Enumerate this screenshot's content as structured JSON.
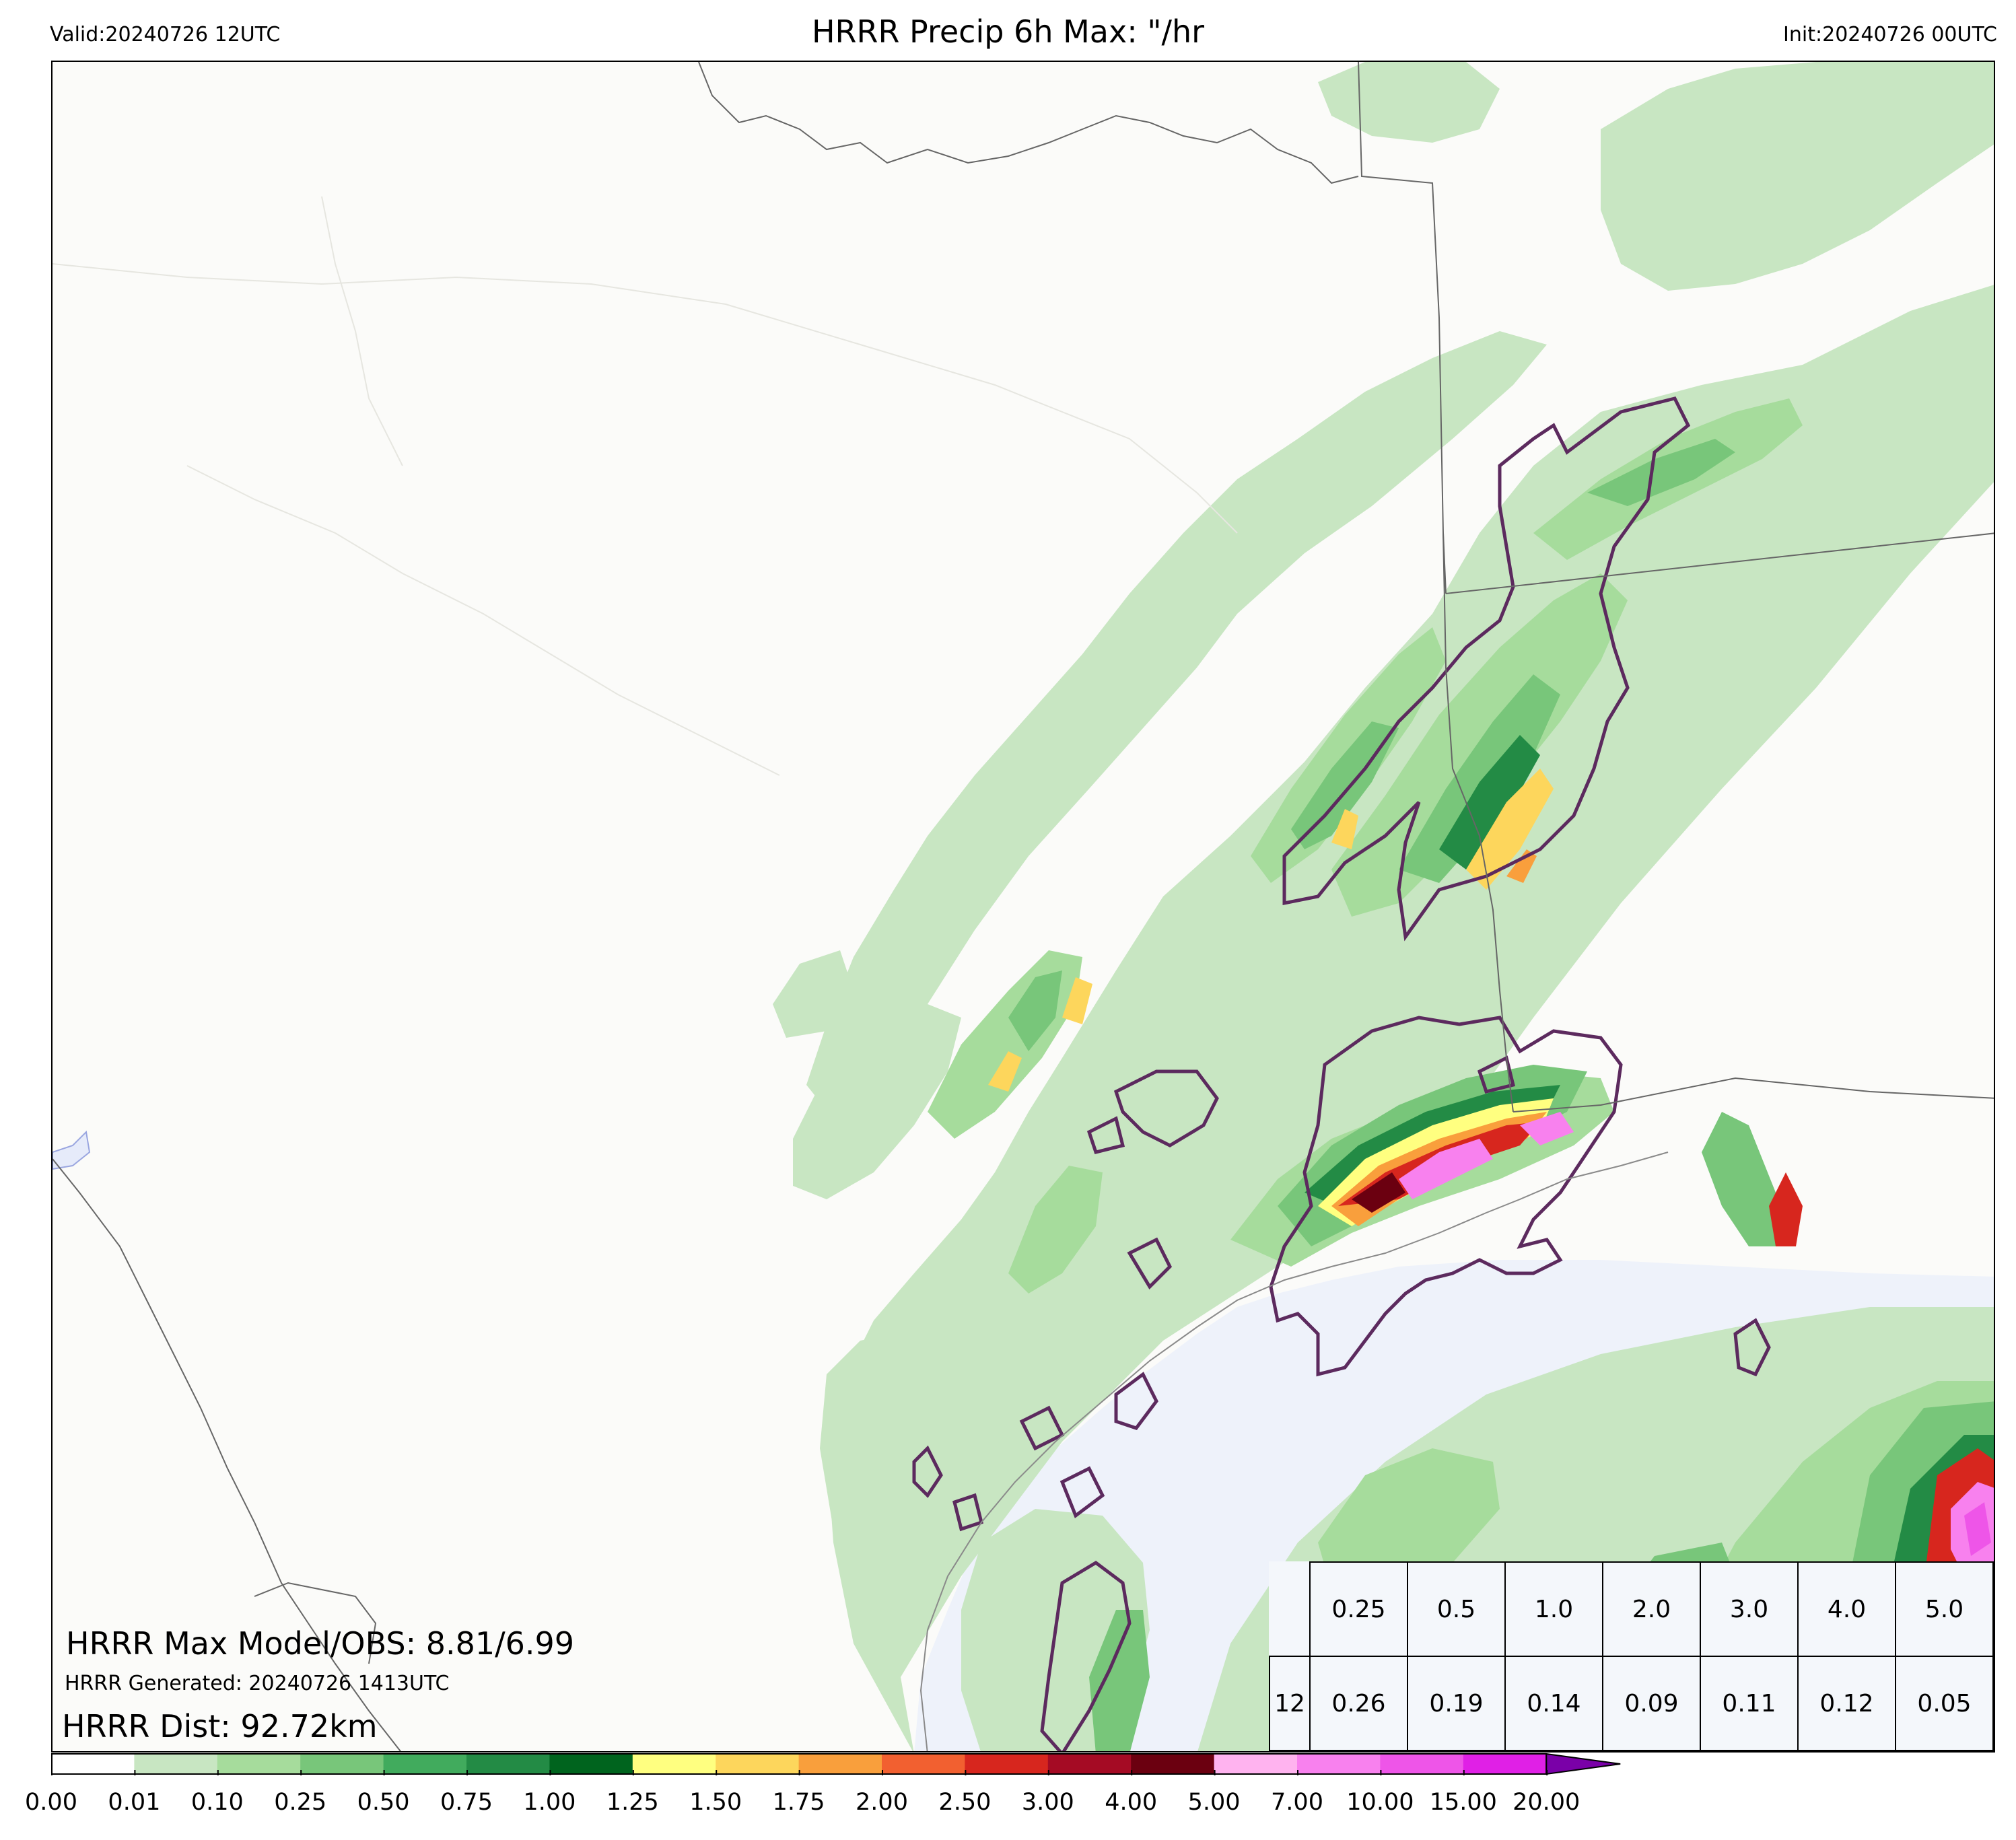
{
  "header": {
    "valid": "Valid:20240726 12UTC",
    "title": "HRRR Precip 6h Max: \"/hr",
    "init": "Init:20240726 00UTC"
  },
  "stats": {
    "max_model_obs": "HRRR Max Model/OBS: 8.81/6.99",
    "generated": "HRRR Generated: 20240726 1413UTC",
    "distance": "HRRR Dist: 92.72km"
  },
  "threshold_table": {
    "thresholds": [
      "0.25",
      "0.5",
      "1.0",
      "2.0",
      "3.0",
      "4.0",
      "5.0"
    ],
    "row_label": "12",
    "values": [
      "0.26",
      "0.19",
      "0.14",
      "0.09",
      "0.11",
      "0.12",
      "0.05"
    ]
  },
  "colorbar": {
    "ticks": [
      "0.00",
      "0.01",
      "0.10",
      "0.25",
      "0.50",
      "0.75",
      "1.00",
      "1.25",
      "1.50",
      "1.75",
      "2.00",
      "2.50",
      "3.00",
      "4.00",
      "5.00",
      "7.00",
      "10.00",
      "15.00",
      "20.00"
    ],
    "colors": [
      "#ffffff",
      "#c8e6c2",
      "#a6dc9c",
      "#78c67a",
      "#41ab5d",
      "#238b45",
      "#00641e",
      "#ffff80",
      "#fdd65c",
      "#f99f3c",
      "#f26030",
      "#d7261e",
      "#a50b24",
      "#6b0010",
      "#ffb3ef",
      "#f881ee",
      "#ee55e8",
      "#e020e6",
      "#b010d0",
      "#7a00a8"
    ],
    "extend": "max"
  },
  "map": {
    "colors": {
      "land": "#fbfbf9",
      "water": "#eef2fa",
      "obs_contour": "#5c2a5e",
      "borders": "#555555"
    }
  }
}
